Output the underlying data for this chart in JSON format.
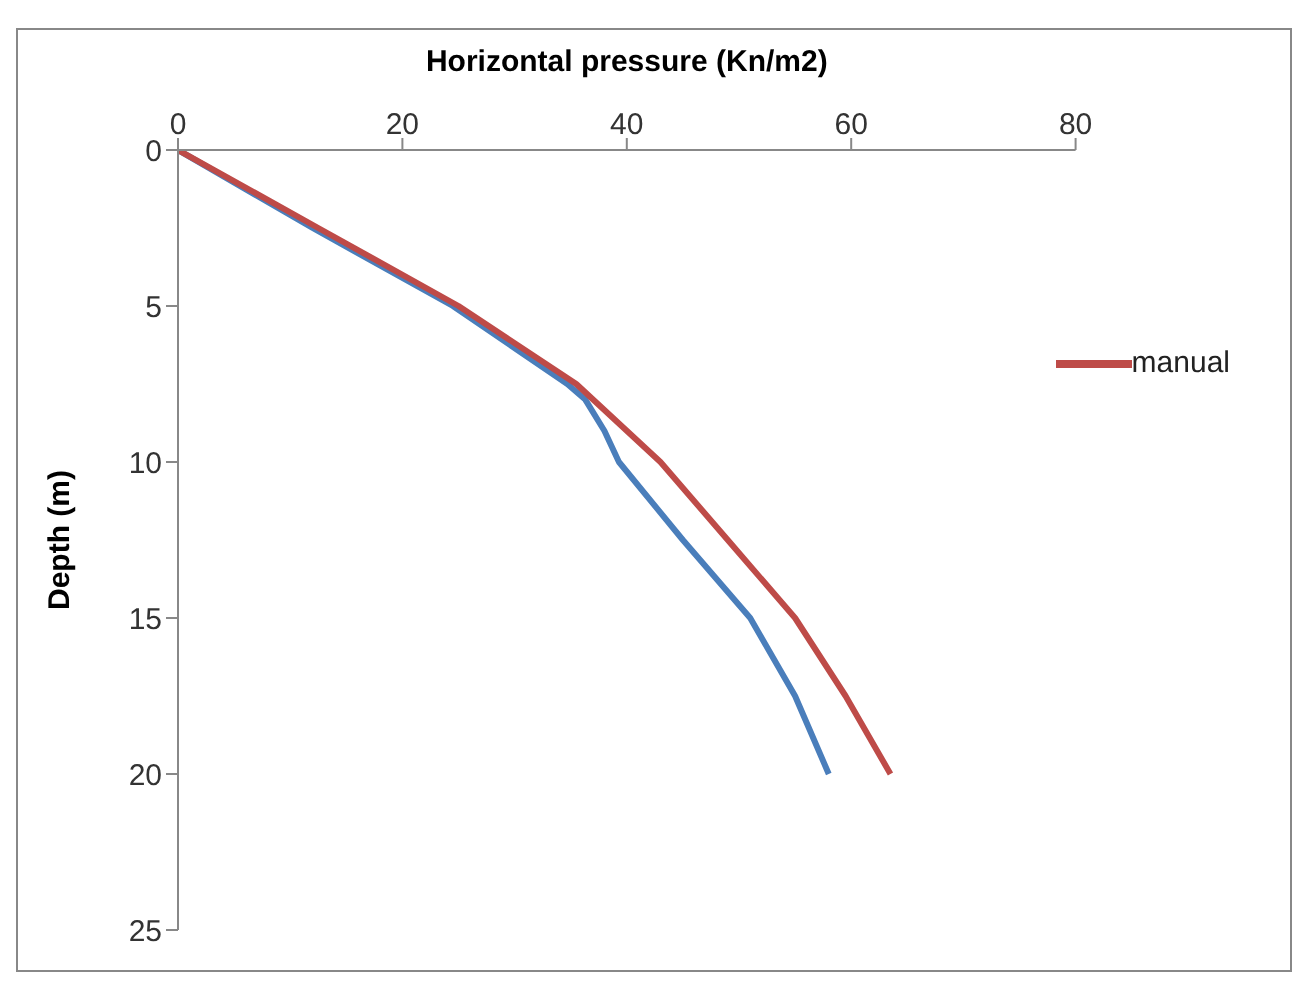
{
  "chart_data": {
    "type": "line",
    "xlabel": "Horizontal pressure (Kn/m2)",
    "ylabel": "Depth (m)",
    "xlim": [
      0,
      80
    ],
    "xticks": [
      0,
      20,
      40,
      60,
      80
    ],
    "ylim": [
      25,
      0
    ],
    "yticks": [
      0,
      5,
      10,
      15,
      20,
      25
    ],
    "grid": false,
    "legend": "right",
    "marker": "none",
    "line_style": "solid",
    "series": [
      {
        "color": "#4a7ebb",
        "x": [
          0,
          12,
          24.5,
          34.7,
          36.3,
          38,
          39.3,
          45,
          51,
          55,
          58
        ],
        "values": [
          0,
          2.5,
          5,
          7.5,
          8,
          9,
          10,
          12.5,
          15,
          17.5,
          20
        ]
      },
      {
        "name": "manual",
        "color": "#be4b48",
        "x": [
          0,
          12.5,
          25,
          35.5,
          43,
          49,
          55,
          59.5,
          63.5
        ],
        "values": [
          0,
          2.5,
          5,
          7.5,
          10,
          12.5,
          15,
          17.5,
          20
        ]
      }
    ]
  }
}
